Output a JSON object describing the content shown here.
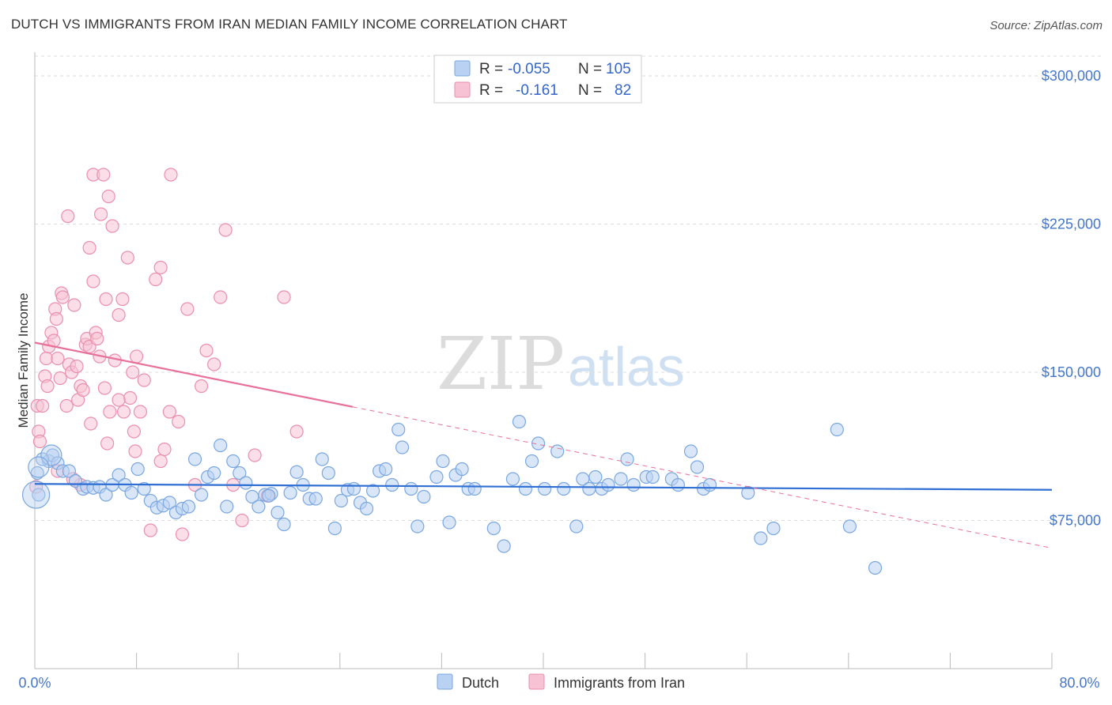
{
  "title": "DUTCH VS IMMIGRANTS FROM IRAN MEDIAN FAMILY INCOME CORRELATION CHART",
  "source": "Source: ZipAtlas.com",
  "watermark": {
    "zip": "ZIP",
    "atlas": "atlas"
  },
  "legend": {
    "rows": [
      {
        "r_label": "R =",
        "r_value": "-0.055",
        "n_label": "N =",
        "n_value": "105"
      },
      {
        "r_label": "R =",
        "r_value": "-0.161",
        "n_label": "N =",
        "n_value": "82"
      }
    ]
  },
  "bottom_legend": [
    {
      "label": "Dutch"
    },
    {
      "label": "Immigrants from Iran"
    }
  ],
  "colors": {
    "dutch_fill": "#b9d1f2",
    "dutch_stroke": "#7aa7e0",
    "dutch_line": "#2f6fd4",
    "iran_fill": "#f7c2d3",
    "iran_stroke": "#ea8fae",
    "iran_line": "#e8709a",
    "grid": "#dddddd",
    "axis_text": "#4477cc"
  },
  "chart_data": {
    "type": "scatter",
    "title": "DUTCH VS IMMIGRANTS FROM IRAN MEDIAN FAMILY INCOME CORRELATION CHART",
    "xlabel": "",
    "ylabel": "Median Family Income",
    "xlim": [
      0,
      80
    ],
    "ylim": [
      0,
      312000
    ],
    "x_tick_labels": [
      "0.0%",
      "80.0%"
    ],
    "y_ticks": [
      75000,
      150000,
      225000,
      300000
    ],
    "y_tick_labels": [
      "$75,000",
      "$150,000",
      "$225,000",
      "$300,000"
    ],
    "grid": true,
    "series": [
      {
        "name": "Dutch",
        "r": -0.055,
        "n": 105,
        "trend": {
          "x": [
            0,
            80
          ],
          "y": [
            93500,
            90500
          ],
          "solid_to": 80
        },
        "points": [
          [
            0.2,
            99000
          ],
          [
            0.3,
            88000
          ],
          [
            1.1,
            105000
          ],
          [
            1.4,
            108000
          ],
          [
            1.8,
            104000
          ],
          [
            2.2,
            100000
          ],
          [
            2.7,
            100000
          ],
          [
            3.2,
            95000
          ],
          [
            3.8,
            91000
          ],
          [
            4.1,
            92000
          ],
          [
            4.6,
            91500
          ],
          [
            5.1,
            92000
          ],
          [
            5.6,
            88000
          ],
          [
            6.1,
            93000
          ],
          [
            6.6,
            98000
          ],
          [
            7.1,
            93000
          ],
          [
            7.6,
            89000
          ],
          [
            8.1,
            101000
          ],
          [
            8.6,
            91000
          ],
          [
            9.1,
            85000
          ],
          [
            9.6,
            81500
          ],
          [
            10.1,
            82500
          ],
          [
            10.6,
            84000
          ],
          [
            11.1,
            79000
          ],
          [
            11.6,
            81000
          ],
          [
            12.1,
            82000
          ],
          [
            12.6,
            106000
          ],
          [
            13.1,
            88000
          ],
          [
            13.6,
            97000
          ],
          [
            14.1,
            99000
          ],
          [
            14.6,
            113000
          ],
          [
            15.1,
            82000
          ],
          [
            15.6,
            105000
          ],
          [
            16.1,
            99000
          ],
          [
            16.6,
            94000
          ],
          [
            17.1,
            87000
          ],
          [
            17.6,
            82000
          ],
          [
            18.1,
            88000
          ],
          [
            18.6,
            88500
          ],
          [
            19.1,
            79000
          ],
          [
            19.6,
            73000
          ],
          [
            20.1,
            89000
          ],
          [
            20.6,
            99500
          ],
          [
            21.1,
            93000
          ],
          [
            21.6,
            86000
          ],
          [
            22.1,
            86000
          ],
          [
            22.6,
            106000
          ],
          [
            23.1,
            99000
          ],
          [
            23.6,
            71000
          ],
          [
            24.1,
            85000
          ],
          [
            24.6,
            90500
          ],
          [
            25.1,
            91000
          ],
          [
            25.6,
            84000
          ],
          [
            26.1,
            81000
          ],
          [
            26.6,
            90000
          ],
          [
            27.1,
            100000
          ],
          [
            27.6,
            101000
          ],
          [
            28.1,
            93000
          ],
          [
            28.6,
            121000
          ],
          [
            28.9,
            112000
          ],
          [
            29.6,
            91000
          ],
          [
            30.1,
            72000
          ],
          [
            30.6,
            87000
          ],
          [
            31.6,
            97000
          ],
          [
            32.1,
            105000
          ],
          [
            32.6,
            74000
          ],
          [
            33.1,
            98000
          ],
          [
            33.6,
            101000
          ],
          [
            34.1,
            91000
          ],
          [
            34.6,
            91000
          ],
          [
            36.1,
            71000
          ],
          [
            36.9,
            62000
          ],
          [
            37.6,
            96000
          ],
          [
            38.1,
            125000
          ],
          [
            38.6,
            91000
          ],
          [
            39.1,
            105000
          ],
          [
            39.6,
            114000
          ],
          [
            40.1,
            91000
          ],
          [
            41.1,
            110000
          ],
          [
            41.6,
            91000
          ],
          [
            42.6,
            72000
          ],
          [
            43.1,
            96000
          ],
          [
            43.6,
            91000
          ],
          [
            44.1,
            97000
          ],
          [
            44.6,
            91000
          ],
          [
            45.1,
            93000
          ],
          [
            46.1,
            96000
          ],
          [
            46.6,
            106000
          ],
          [
            47.1,
            93000
          ],
          [
            48.1,
            97000
          ],
          [
            48.6,
            97000
          ],
          [
            50.1,
            96000
          ],
          [
            50.6,
            93000
          ],
          [
            51.6,
            110000
          ],
          [
            52.1,
            102000
          ],
          [
            52.6,
            91000
          ],
          [
            53.1,
            93000
          ],
          [
            56.1,
            89000
          ],
          [
            57.1,
            66000
          ],
          [
            58.1,
            71000
          ],
          [
            63.1,
            121000
          ],
          [
            64.1,
            72000
          ],
          [
            66.1,
            51000
          ],
          [
            0.6,
            106000
          ],
          [
            18.4,
            87500
          ]
        ]
      },
      {
        "name": "Immigrants from Iran",
        "r": -0.161,
        "n": 82,
        "trend": {
          "x": [
            0,
            80
          ],
          "y": [
            165000,
            61000
          ],
          "solid_to": 25
        },
        "points": [
          [
            0.1,
            92000
          ],
          [
            0.2,
            133000
          ],
          [
            0.3,
            120000
          ],
          [
            0.4,
            115000
          ],
          [
            0.6,
            133000
          ],
          [
            0.8,
            148000
          ],
          [
            0.9,
            157000
          ],
          [
            1.0,
            143000
          ],
          [
            1.1,
            163000
          ],
          [
            1.3,
            170000
          ],
          [
            1.5,
            166000
          ],
          [
            1.6,
            182000
          ],
          [
            1.7,
            177000
          ],
          [
            1.8,
            157000
          ],
          [
            2.1,
            190000
          ],
          [
            2.2,
            188000
          ],
          [
            2.5,
            133000
          ],
          [
            2.6,
            229000
          ],
          [
            2.7,
            154000
          ],
          [
            2.9,
            150000
          ],
          [
            3.1,
            184000
          ],
          [
            3.3,
            153000
          ],
          [
            3.4,
            136000
          ],
          [
            3.6,
            143000
          ],
          [
            3.8,
            141000
          ],
          [
            4.0,
            164000
          ],
          [
            4.1,
            167000
          ],
          [
            4.3,
            163000
          ],
          [
            4.3,
            213000
          ],
          [
            4.4,
            124000
          ],
          [
            4.6,
            196000
          ],
          [
            4.6,
            250000
          ],
          [
            4.8,
            170000
          ],
          [
            4.9,
            167000
          ],
          [
            5.1,
            158000
          ],
          [
            5.2,
            230000
          ],
          [
            5.4,
            250000
          ],
          [
            5.5,
            142000
          ],
          [
            5.6,
            187000
          ],
          [
            5.7,
            114000
          ],
          [
            5.8,
            239000
          ],
          [
            5.9,
            130000
          ],
          [
            6.1,
            224000
          ],
          [
            6.3,
            156000
          ],
          [
            6.6,
            179000
          ],
          [
            6.9,
            187000
          ],
          [
            7.0,
            130000
          ],
          [
            7.3,
            208000
          ],
          [
            7.5,
            137000
          ],
          [
            7.7,
            150000
          ],
          [
            7.8,
            120000
          ],
          [
            8.0,
            158000
          ],
          [
            8.3,
            130000
          ],
          [
            8.6,
            146000
          ],
          [
            9.1,
            70000
          ],
          [
            9.5,
            197000
          ],
          [
            9.9,
            203000
          ],
          [
            10.2,
            111000
          ],
          [
            10.6,
            130000
          ],
          [
            10.7,
            250000
          ],
          [
            11.3,
            125000
          ],
          [
            11.6,
            68000
          ],
          [
            12.0,
            182000
          ],
          [
            12.6,
            93000
          ],
          [
            13.1,
            143000
          ],
          [
            13.5,
            161000
          ],
          [
            14.1,
            154000
          ],
          [
            14.6,
            188000
          ],
          [
            15.0,
            222000
          ],
          [
            15.6,
            93000
          ],
          [
            16.3,
            75000
          ],
          [
            17.3,
            108000
          ],
          [
            18.3,
            87500
          ],
          [
            19.6,
            188000
          ],
          [
            20.6,
            120000
          ],
          [
            2.0,
            147000
          ],
          [
            3.6,
            93000
          ],
          [
            6.6,
            136000
          ],
          [
            1.8,
            100000
          ],
          [
            9.9,
            105000
          ],
          [
            3.0,
            96000
          ],
          [
            7.9,
            110000
          ]
        ]
      }
    ]
  }
}
